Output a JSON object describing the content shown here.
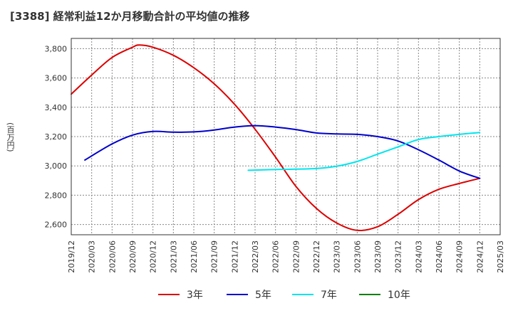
{
  "title": "[3388]  経常利益12か月移動合計の平均値の推移",
  "unit_label": "(百万円)",
  "chart_data": {
    "type": "line",
    "title": "[3388]  経常利益12か月移動合計の平均値の推移",
    "ylabel": "(百万円)",
    "ylim": [
      2530,
      3870
    ],
    "yticks": [
      2600,
      2800,
      3000,
      3200,
      3400,
      3600,
      3800
    ],
    "ytick_labels": [
      "2,600",
      "2,800",
      "3,000",
      "3,200",
      "3,400",
      "3,600",
      "3,800"
    ],
    "xlim": [
      "2019-12",
      "2025-03"
    ],
    "xtick_labels": [
      "2019/12",
      "2020/03",
      "2020/06",
      "2020/09",
      "2020/12",
      "2021/03",
      "2021/06",
      "2021/09",
      "2021/12",
      "2022/03",
      "2022/06",
      "2022/09",
      "2022/12",
      "2023/03",
      "2023/06",
      "2023/09",
      "2023/12",
      "2024/03",
      "2024/06",
      "2024/09",
      "2024/12",
      "2025/03"
    ],
    "grid": true,
    "legend_position": "bottom",
    "series": [
      {
        "name": "3年",
        "color": "#dd0000",
        "points": [
          [
            "2019-12",
            3490
          ],
          [
            "2020-03",
            3620
          ],
          [
            "2020-06",
            3740
          ],
          [
            "2020-09",
            3810
          ],
          [
            "2020-10",
            3825
          ],
          [
            "2020-12",
            3810
          ],
          [
            "2021-03",
            3755
          ],
          [
            "2021-06",
            3670
          ],
          [
            "2021-09",
            3560
          ],
          [
            "2021-12",
            3420
          ],
          [
            "2022-03",
            3250
          ],
          [
            "2022-06",
            3060
          ],
          [
            "2022-09",
            2860
          ],
          [
            "2022-12",
            2710
          ],
          [
            "2023-03",
            2610
          ],
          [
            "2023-06",
            2560
          ],
          [
            "2023-09",
            2585
          ],
          [
            "2023-12",
            2670
          ],
          [
            "2024-03",
            2770
          ],
          [
            "2024-06",
            2840
          ],
          [
            "2024-09",
            2880
          ],
          [
            "2024-12",
            2915
          ]
        ]
      },
      {
        "name": "5年",
        "color": "#0000cc",
        "points": [
          [
            "2020-02",
            3040
          ],
          [
            "2020-06",
            3150
          ],
          [
            "2020-09",
            3210
          ],
          [
            "2020-12",
            3235
          ],
          [
            "2021-03",
            3230
          ],
          [
            "2021-06",
            3232
          ],
          [
            "2021-09",
            3245
          ],
          [
            "2021-12",
            3265
          ],
          [
            "2022-03",
            3275
          ],
          [
            "2022-06",
            3265
          ],
          [
            "2022-09",
            3248
          ],
          [
            "2022-12",
            3225
          ],
          [
            "2023-03",
            3218
          ],
          [
            "2023-06",
            3215
          ],
          [
            "2023-09",
            3200
          ],
          [
            "2023-12",
            3170
          ],
          [
            "2024-03",
            3110
          ],
          [
            "2024-06",
            3040
          ],
          [
            "2024-09",
            2965
          ],
          [
            "2024-12",
            2915
          ]
        ]
      },
      {
        "name": "7年",
        "color": "#00e5ee",
        "points": [
          [
            "2022-02",
            2970
          ],
          [
            "2022-06",
            2975
          ],
          [
            "2022-09",
            2978
          ],
          [
            "2022-12",
            2982
          ],
          [
            "2023-03",
            2998
          ],
          [
            "2023-06",
            3030
          ],
          [
            "2023-09",
            3080
          ],
          [
            "2023-12",
            3130
          ],
          [
            "2024-03",
            3180
          ],
          [
            "2024-06",
            3200
          ],
          [
            "2024-09",
            3215
          ],
          [
            "2024-12",
            3228
          ]
        ]
      },
      {
        "name": "10年",
        "color": "#008000",
        "points": []
      }
    ]
  }
}
